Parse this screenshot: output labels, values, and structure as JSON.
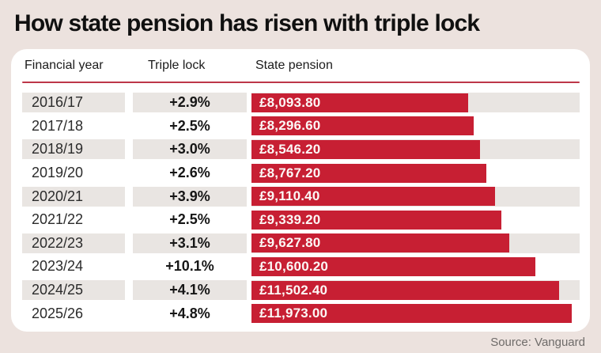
{
  "page": {
    "title": "How state pension has risen with triple lock",
    "source": "Source: Vanguard"
  },
  "table": {
    "headers": [
      "Financial year",
      "Triple lock",
      "State pension"
    ]
  },
  "chart_data": {
    "type": "bar",
    "orientation": "horizontal",
    "title": "How state pension has risen with triple lock",
    "categories": [
      "2016/17",
      "2017/18",
      "2018/19",
      "2019/20",
      "2020/21",
      "2021/22",
      "2022/23",
      "2023/24",
      "2024/25",
      "2025/26"
    ],
    "series": [
      {
        "name": "Triple lock",
        "labels": [
          "+2.9%",
          "+2.5%",
          "+3.0%",
          "+2.6%",
          "+3.9%",
          "+2.5%",
          "+3.1%",
          "+10.1%",
          "+4.1%",
          "+4.8%"
        ]
      },
      {
        "name": "State pension",
        "values": [
          8093.8,
          8296.6,
          8546.2,
          8767.2,
          9110.4,
          9339.2,
          9627.8,
          10600.2,
          11502.4,
          11973.0
        ],
        "labels": [
          "£8,093.80",
          "£8,296.60",
          "£8,546.20",
          "£8,767.20",
          "£9,110.40",
          "£9,339.20",
          "£9,627.80",
          "£10,600.20",
          "£11,502.40",
          "£11,973.00"
        ]
      }
    ],
    "value_axis_range": [
      0,
      12270
    ],
    "grid": false,
    "legend": false,
    "striped_rows": "odd",
    "source": "Vanguard"
  },
  "colors": {
    "background": "#ece2de",
    "card": "#ffffff",
    "row_stripe": "#e9e5e2",
    "bar_red": "#c71f33",
    "rule_red": "#bd3648",
    "bar_label_text": "#fcf8f6",
    "title_text": "#101010",
    "source_text": "#6e6b69"
  }
}
